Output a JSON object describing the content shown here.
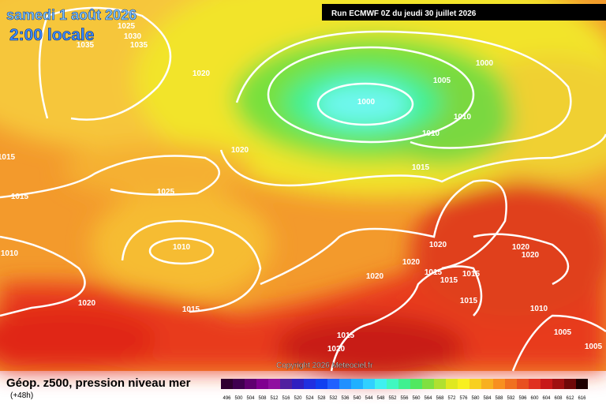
{
  "header": {
    "date": "samedi 1 août 2026",
    "time": "2:00 locale",
    "run": "Run ECMWF 0Z du jeudi 30 juillet 2026"
  },
  "isobar_labels": [
    1025,
    1030,
    1035,
    1035,
    1020,
    1000,
    1005,
    1000,
    1010,
    1010,
    1020,
    1015,
    1015,
    1025,
    1015,
    1020,
    1020,
    1020,
    1010,
    1010,
    1020,
    1015,
    1015,
    1015,
    1020,
    1015,
    1020,
    1015,
    1010,
    1005,
    1015,
    1020,
    1005
  ],
  "copyright": "Copyright 2026 Meteociel.fr",
  "footer": {
    "title": "Géop. z500, pression niveau mer",
    "lead": "(+48h)"
  },
  "colorbar": {
    "labels": [
      496,
      500,
      504,
      508,
      512,
      516,
      520,
      524,
      528,
      532,
      536,
      540,
      544,
      548,
      552,
      556,
      560,
      564,
      568,
      572,
      576,
      580,
      584,
      588,
      592,
      596,
      600,
      604,
      608,
      612,
      616
    ]
  }
}
